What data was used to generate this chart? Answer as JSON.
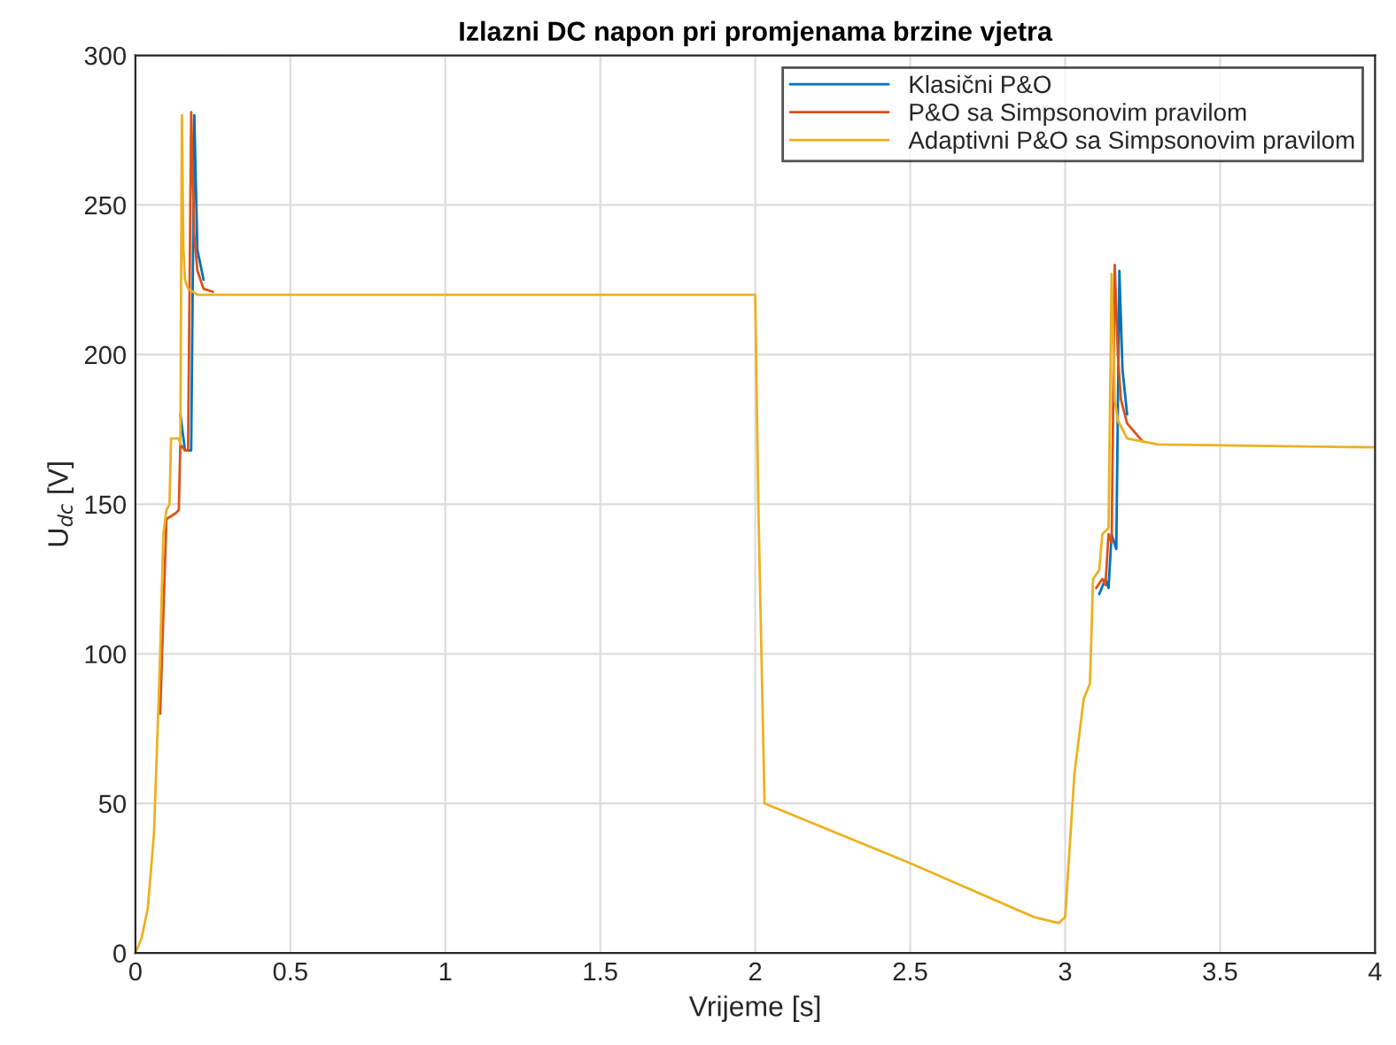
{
  "chart_data": {
    "type": "line",
    "title": "Izlazni DC napon pri promjenama brzine vjetra",
    "xlabel": "Vrijeme [s]",
    "ylabel": "U$_{dc}$ [V]",
    "xlim": [
      0,
      4
    ],
    "xticks": [
      0,
      0.5,
      1,
      1.5,
      2,
      2.5,
      3,
      3.5,
      4
    ],
    "ylim": [
      0,
      300
    ],
    "yticks": [
      0,
      50,
      100,
      150,
      200,
      250,
      300
    ],
    "grid": true,
    "legend": "top right",
    "line_style": "solid",
    "marker": "none",
    "series": [
      {
        "name": "Klasični P&O",
        "color": "#0072bd",
        "x": [
          0.145,
          0.16,
          0.18,
          0.19,
          0.2,
          0.22,
          2.0,
          3.11,
          3.13,
          3.14,
          3.15,
          3.165,
          3.175,
          3.185,
          3.2
        ],
        "values": [
          180,
          168,
          168,
          280,
          235,
          225,
          null,
          120,
          125,
          122,
          140,
          135,
          228,
          195,
          180
        ]
      },
      {
        "name": "P&O sa Simpsonovim pravilom",
        "color": "#d95319",
        "x": [
          0.08,
          0.1,
          0.13,
          0.14,
          0.145,
          0.16,
          0.17,
          0.18,
          0.19,
          0.2,
          0.22,
          0.25,
          2.0,
          3.1,
          3.12,
          3.13,
          3.14,
          3.15,
          3.16,
          3.17,
          3.18,
          3.2,
          3.25
        ],
        "values": [
          80,
          145,
          147,
          148,
          170,
          168,
          168,
          281,
          240,
          228,
          222,
          221,
          null,
          122,
          125,
          123,
          140,
          137,
          230,
          200,
          185,
          177,
          171
        ]
      },
      {
        "name": "Adaptivni P&O sa Simpsonovim pravilom",
        "color": "#edb120",
        "x": [
          0,
          0.02,
          0.04,
          0.06,
          0.08,
          0.09,
          0.1,
          0.11,
          0.115,
          0.14,
          0.145,
          0.15,
          0.155,
          0.16,
          0.17,
          0.2,
          2.0,
          2.01,
          2.03,
          2.5,
          2.9,
          2.98,
          3.0,
          3.03,
          3.06,
          3.08,
          3.09,
          3.11,
          3.12,
          3.14,
          3.15,
          3.16,
          3.17,
          3.2,
          3.3,
          4.0
        ],
        "values": [
          0,
          5,
          15,
          40,
          100,
          140,
          148,
          150,
          172,
          172,
          170,
          280,
          235,
          225,
          222,
          220,
          220,
          150,
          50,
          30,
          12,
          10,
          12,
          60,
          85,
          90,
          125,
          128,
          140,
          142,
          227,
          185,
          178,
          172,
          170,
          169
        ]
      }
    ]
  }
}
